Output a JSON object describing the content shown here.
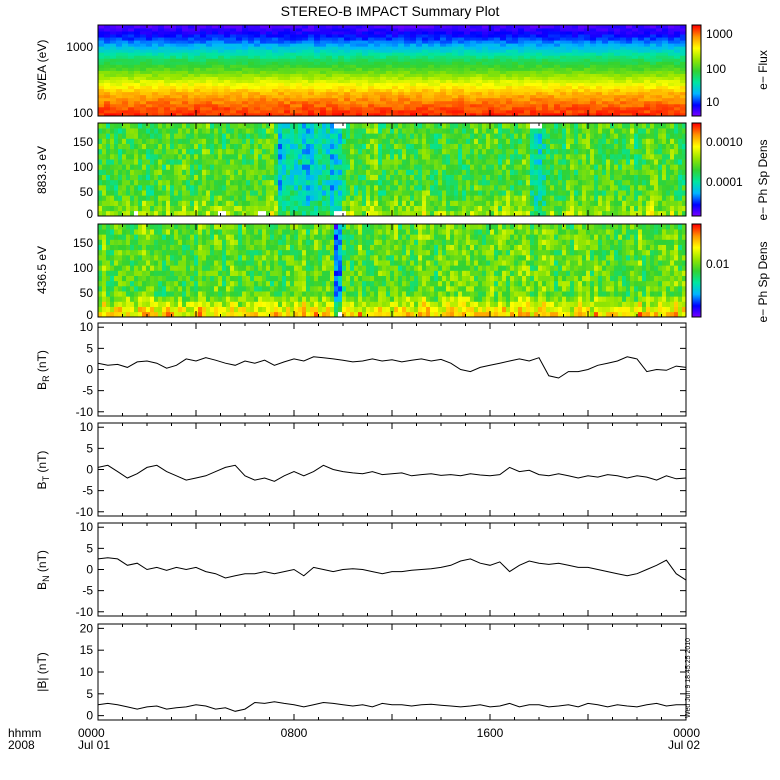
{
  "title": "STEREO-B IMPACT Summary Plot",
  "timestamp": "Wed Jun  9 18:45:25 2010",
  "time_axis": {
    "row1_label": "hhmm",
    "row2_label": "2008",
    "ticks": [
      {
        "hours": 0,
        "time": "0000",
        "date": "Jul 01"
      },
      {
        "hours": 8,
        "time": "0800",
        "date": ""
      },
      {
        "hours": 16,
        "time": "1600",
        "date": ""
      },
      {
        "hours": 24,
        "time": "0000",
        "date": "Jul 02"
      }
    ],
    "range_hours": [
      0,
      24
    ]
  },
  "colors": {
    "colormap": [
      "#7f00ff",
      "#0000ff",
      "#00b4ff",
      "#00e6a0",
      "#32d232",
      "#96e600",
      "#ffff00",
      "#ff9600",
      "#ff0000"
    ],
    "line": "#000000",
    "gap": "#ffffff"
  },
  "panels": {
    "swea": {
      "ylabel": "SWEA (eV)",
      "yscale": "log",
      "ylim": [
        100,
        2000
      ],
      "yticks": [
        "100",
        "1000"
      ],
      "cbar_label": "e− Flux",
      "cbar_scale": "log",
      "cbar_range": [
        3,
        2000
      ],
      "cbar_ticks": [
        "10",
        "100",
        "1000"
      ]
    },
    "pad883": {
      "ylabel": "883.3 eV",
      "ylim": [
        0,
        180
      ],
      "yticks": [
        "0",
        "50",
        "100",
        "150"
      ],
      "cbar_label": "e− Ph Sp Dens",
      "cbar_scale": "log",
      "cbar_range": [
        1e-05,
        0.002
      ],
      "cbar_ticks": [
        "0.0001",
        "0.0010"
      ]
    },
    "pad436": {
      "ylabel": "436.5 eV",
      "ylim": [
        0,
        180
      ],
      "yticks": [
        "0",
        "50",
        "100",
        "150"
      ],
      "cbar_label": "e− Ph Sp Dens",
      "cbar_scale": "log",
      "cbar_range": [
        0.002,
        0.05
      ],
      "cbar_ticks": [
        "0.01"
      ]
    },
    "br": {
      "ylabel_main": "B",
      "ylabel_sub": "R",
      "ylabel_unit": " (nT)",
      "ylim": [
        -11,
        11
      ],
      "yticks": [
        "-10",
        "-5",
        "0",
        "5",
        "10"
      ]
    },
    "bt": {
      "ylabel_main": "B",
      "ylabel_sub": "T",
      "ylabel_unit": " (nT)",
      "ylim": [
        -11,
        11
      ],
      "yticks": [
        "-10",
        "-5",
        "0",
        "5",
        "10"
      ]
    },
    "bn": {
      "ylabel_main": "B",
      "ylabel_sub": "N",
      "ylabel_unit": " (nT)",
      "ylim": [
        -11,
        11
      ],
      "yticks": [
        "-10",
        "-5",
        "0",
        "5",
        "10"
      ]
    },
    "bmag": {
      "ylabel": "|B| (nT)",
      "ylim": [
        -1,
        21
      ],
      "yticks": [
        "0",
        "5",
        "10",
        "15",
        "20"
      ]
    }
  },
  "chart_data": [
    {
      "type": "heatmap",
      "panel": "swea",
      "description_levels": "flux decreases with energy",
      "x_hours": [
        0,
        24
      ],
      "energy_eV": [
        100,
        150,
        200,
        300,
        500,
        700,
        1000,
        1500,
        2000
      ],
      "log_flux": [
        3.0,
        2.85,
        2.65,
        2.3,
        1.9,
        1.6,
        1.2,
        0.8,
        0.55
      ]
    },
    {
      "type": "heatmap",
      "panel": "pad883"
    },
    {
      "type": "heatmap",
      "panel": "pad436"
    },
    {
      "type": "line",
      "panel": "br",
      "x": [
        0,
        0.4,
        0.8,
        1.2,
        1.6,
        2.0,
        2.4,
        2.8,
        3.2,
        3.6,
        4.0,
        4.4,
        4.8,
        5.2,
        5.6,
        6.0,
        6.4,
        6.8,
        7.2,
        7.6,
        8.0,
        8.4,
        8.8,
        9.2,
        9.6,
        10.0,
        10.4,
        10.8,
        11.2,
        11.6,
        12.0,
        12.4,
        12.8,
        13.2,
        13.6,
        14.0,
        14.4,
        14.8,
        15.2,
        15.6,
        16.0,
        16.4,
        16.8,
        17.2,
        17.6,
        18.0,
        18.4,
        18.8,
        19.2,
        19.6,
        20.0,
        20.4,
        20.8,
        21.2,
        21.6,
        22.0,
        22.4,
        22.8,
        23.2,
        23.6,
        24.0
      ],
      "y": [
        1.5,
        1.0,
        1.2,
        0.5,
        1.8,
        2.0,
        1.5,
        0.3,
        1.0,
        2.5,
        2.0,
        2.8,
        2.2,
        1.5,
        1.0,
        2.0,
        1.5,
        2.2,
        1.0,
        1.8,
        2.5,
        2.0,
        3.0,
        2.8,
        2.5,
        2.2,
        1.8,
        2.0,
        2.5,
        2.0,
        2.3,
        1.8,
        2.2,
        2.5,
        2.0,
        2.4,
        1.5,
        0.0,
        -0.5,
        0.5,
        1.0,
        1.5,
        2.0,
        2.5,
        2.0,
        2.8,
        -1.5,
        -2.0,
        -0.5,
        -0.5,
        0.0,
        1.0,
        1.5,
        2.0,
        3.0,
        2.5,
        -0.5,
        0.0,
        -0.2,
        0.8,
        0.5
      ]
    },
    {
      "type": "line",
      "panel": "bt",
      "x": [
        0,
        0.4,
        0.8,
        1.2,
        1.6,
        2.0,
        2.4,
        2.8,
        3.2,
        3.6,
        4.0,
        4.4,
        4.8,
        5.2,
        5.6,
        6.0,
        6.4,
        6.8,
        7.2,
        7.6,
        8.0,
        8.4,
        8.8,
        9.2,
        9.6,
        10.0,
        10.4,
        10.8,
        11.2,
        11.6,
        12.0,
        12.4,
        12.8,
        13.2,
        13.6,
        14.0,
        14.4,
        14.8,
        15.2,
        15.6,
        16.0,
        16.4,
        16.8,
        17.2,
        17.6,
        18.0,
        18.4,
        18.8,
        19.2,
        19.6,
        20.0,
        20.4,
        20.8,
        21.2,
        21.6,
        22.0,
        22.4,
        22.8,
        23.2,
        23.6,
        24.0
      ],
      "y": [
        0.5,
        1.0,
        -0.5,
        -2.0,
        -1.0,
        0.5,
        1.0,
        -0.5,
        -1.5,
        -2.5,
        -2.0,
        -1.5,
        -0.5,
        0.5,
        1.0,
        -1.5,
        -2.5,
        -2.0,
        -2.8,
        -1.5,
        -0.5,
        -1.5,
        -0.5,
        1.0,
        0.0,
        -0.5,
        -0.8,
        -1.0,
        -0.5,
        -1.2,
        -1.0,
        -0.8,
        -1.5,
        -1.2,
        -1.0,
        -1.4,
        -1.2,
        -1.5,
        -1.0,
        -1.3,
        -1.5,
        -1.2,
        0.5,
        -0.5,
        -0.2,
        -1.2,
        -1.5,
        -1.0,
        -1.5,
        -2.0,
        -1.5,
        -1.8,
        -1.2,
        -1.5,
        -2.0,
        -1.5,
        -1.8,
        -2.5,
        -1.5,
        -2.2,
        -2.0
      ]
    },
    {
      "type": "line",
      "panel": "bn",
      "x": [
        0,
        0.4,
        0.8,
        1.2,
        1.6,
        2.0,
        2.4,
        2.8,
        3.2,
        3.6,
        4.0,
        4.4,
        4.8,
        5.2,
        5.6,
        6.0,
        6.4,
        6.8,
        7.2,
        7.6,
        8.0,
        8.4,
        8.8,
        9.2,
        9.6,
        10.0,
        10.4,
        10.8,
        11.2,
        11.6,
        12.0,
        12.4,
        12.8,
        13.2,
        13.6,
        14.0,
        14.4,
        14.8,
        15.2,
        15.6,
        16.0,
        16.4,
        16.8,
        17.2,
        17.6,
        18.0,
        18.4,
        18.8,
        19.2,
        19.6,
        20.0,
        20.4,
        20.8,
        21.2,
        21.6,
        22.0,
        22.4,
        22.8,
        23.2,
        23.6,
        24.0
      ],
      "y": [
        2.5,
        2.8,
        2.5,
        1.0,
        1.5,
        0.0,
        0.5,
        -0.2,
        0.5,
        0.0,
        0.5,
        -0.5,
        -1.0,
        -2.0,
        -1.5,
        -1.0,
        -1.0,
        -0.5,
        -1.0,
        -0.5,
        0.0,
        -1.5,
        0.5,
        0.0,
        -0.5,
        0.0,
        0.2,
        0.0,
        -0.5,
        -1.0,
        -0.5,
        -0.5,
        -0.2,
        0.0,
        0.2,
        0.5,
        1.0,
        2.0,
        2.5,
        1.5,
        1.0,
        1.8,
        -0.5,
        1.0,
        2.0,
        1.5,
        1.2,
        1.5,
        1.0,
        0.5,
        0.5,
        0.0,
        -0.5,
        -1.0,
        -1.5,
        -1.0,
        0.0,
        1.0,
        2.2,
        -1.0,
        -2.5
      ]
    },
    {
      "type": "line",
      "panel": "bmag",
      "x": [
        0,
        0.4,
        0.8,
        1.2,
        1.6,
        2.0,
        2.4,
        2.8,
        3.2,
        3.6,
        4.0,
        4.4,
        4.8,
        5.2,
        5.6,
        6.0,
        6.4,
        6.8,
        7.2,
        7.6,
        8.0,
        8.4,
        8.8,
        9.2,
        9.6,
        10.0,
        10.4,
        10.8,
        11.2,
        11.6,
        12.0,
        12.4,
        12.8,
        13.2,
        13.6,
        14.0,
        14.4,
        14.8,
        15.2,
        15.6,
        16.0,
        16.4,
        16.8,
        17.2,
        17.6,
        18.0,
        18.4,
        18.8,
        19.2,
        19.6,
        20.0,
        20.4,
        20.8,
        21.2,
        21.6,
        22.0,
        22.4,
        22.8,
        23.2,
        23.6,
        24.0
      ],
      "y": [
        2.5,
        2.8,
        2.5,
        2.0,
        1.5,
        2.0,
        2.2,
        1.5,
        1.8,
        2.0,
        2.5,
        2.2,
        1.5,
        1.8,
        1.0,
        1.5,
        3.0,
        2.8,
        3.2,
        2.8,
        2.5,
        2.0,
        2.5,
        3.0,
        2.8,
        2.5,
        2.2,
        2.5,
        2.0,
        2.8,
        2.5,
        2.5,
        2.2,
        2.5,
        2.6,
        2.4,
        2.2,
        2.0,
        2.2,
        2.5,
        2.0,
        2.2,
        2.8,
        2.0,
        2.5,
        2.5,
        2.0,
        2.2,
        2.5,
        2.0,
        2.8,
        2.5,
        2.0,
        2.5,
        2.2,
        2.0,
        2.5,
        2.8,
        2.2,
        2.5,
        2.5
      ]
    }
  ]
}
